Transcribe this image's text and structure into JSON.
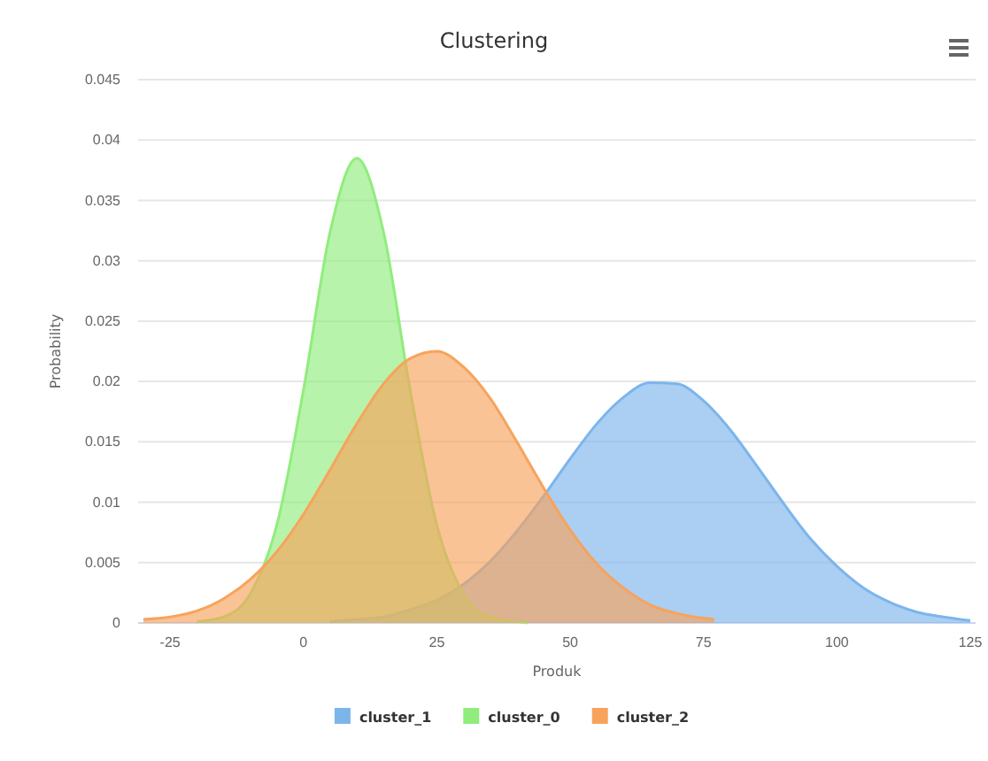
{
  "chart_data": {
    "type": "area",
    "title": "Clustering",
    "xlabel": "Produk",
    "ylabel": "Probability",
    "xlim": [
      -31,
      126
    ],
    "xticks": [
      -25,
      0,
      25,
      50,
      75,
      100,
      125
    ],
    "ylim": [
      0,
      0.045
    ],
    "yticks": [
      0,
      0.005,
      0.01,
      0.015,
      0.02,
      0.025,
      0.03,
      0.035,
      0.04,
      0.045
    ],
    "grid": "y",
    "legend": "bottom",
    "marker": "none",
    "series": [
      {
        "name": "cluster_1",
        "color": "#7cb5ec",
        "x": [
          5,
          10,
          15,
          20,
          25,
          30,
          35,
          40,
          45,
          50,
          55,
          60,
          65,
          70,
          75,
          80,
          85,
          90,
          95,
          100,
          105,
          110,
          115,
          120,
          125
        ],
        "values": [
          0.0001,
          0.0003,
          0.0005,
          0.0011,
          0.0019,
          0.0032,
          0.0051,
          0.0076,
          0.0105,
          0.0136,
          0.0165,
          0.0187,
          0.0199,
          0.0198,
          0.0184,
          0.016,
          0.013,
          0.0099,
          0.007,
          0.0047,
          0.0029,
          0.0017,
          0.0009,
          0.0005,
          0.0002
        ]
      },
      {
        "name": "cluster_0",
        "color": "#90ed7d",
        "x": [
          -20,
          -15,
          -10,
          -5,
          0,
          5,
          10,
          15,
          20,
          25,
          30,
          35,
          40,
          42
        ],
        "values": [
          0.0001,
          0.0005,
          0.0024,
          0.0081,
          0.0193,
          0.0324,
          0.0385,
          0.0324,
          0.0193,
          0.0081,
          0.0024,
          0.0005,
          0.0001,
          0
        ]
      },
      {
        "name": "cluster_2",
        "color": "#f7a35c",
        "x": [
          -30,
          -25,
          -20,
          -15,
          -10,
          -5,
          0,
          5,
          10,
          15,
          20,
          25,
          30,
          35,
          40,
          45,
          50,
          55,
          60,
          65,
          70,
          75,
          77
        ],
        "values": [
          0.0003,
          0.0005,
          0.001,
          0.002,
          0.0036,
          0.0059,
          0.009,
          0.0127,
          0.0165,
          0.0198,
          0.0219,
          0.0225,
          0.0212,
          0.0186,
          0.015,
          0.0112,
          0.0077,
          0.0049,
          0.0029,
          0.0015,
          0.0008,
          0.0004,
          0.0003
        ]
      }
    ]
  }
}
